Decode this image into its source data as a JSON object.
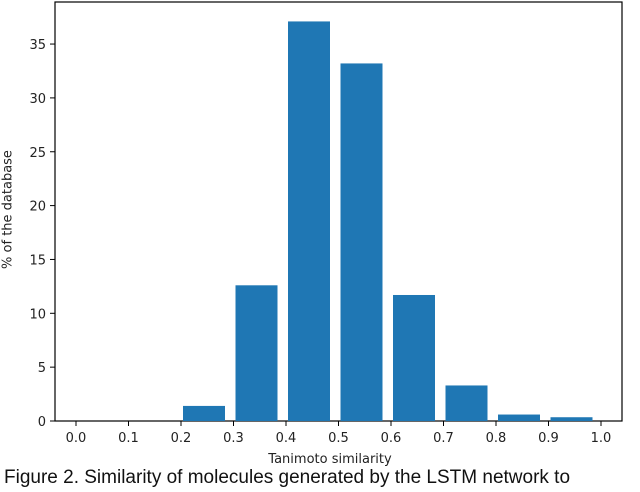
{
  "chart_data": {
    "type": "bar",
    "title": "",
    "xlabel": "Tanimoto similarity",
    "ylabel": "% of the database",
    "categories": [
      "0.0-0.1",
      "0.1-0.2",
      "0.2-0.3",
      "0.3-0.4",
      "0.4-0.5",
      "0.5-0.6",
      "0.6-0.7",
      "0.7-0.8",
      "0.8-0.9",
      "0.9-1.0"
    ],
    "bin_edges": [
      0.0,
      0.1,
      0.2,
      0.3,
      0.4,
      0.5,
      0.6,
      0.7,
      0.8,
      0.9,
      1.0
    ],
    "values": [
      0,
      0,
      1.4,
      12.6,
      37.1,
      33.2,
      11.7,
      3.3,
      0.6,
      0.35
    ],
    "xticks": [
      "0.0",
      "0.1",
      "0.2",
      "0.3",
      "0.4",
      "0.5",
      "0.6",
      "0.7",
      "0.8",
      "0.9",
      "1.0"
    ],
    "yticks": [
      "0",
      "5",
      "10",
      "15",
      "20",
      "25",
      "30",
      "35"
    ],
    "xlim": [
      -0.04,
      1.04
    ],
    "ylim": [
      0,
      39
    ],
    "grid": false,
    "legend": null,
    "bar_color": "#1f77b4"
  },
  "caption": "Figure 2. Similarity of molecules generated by the LSTM network to"
}
